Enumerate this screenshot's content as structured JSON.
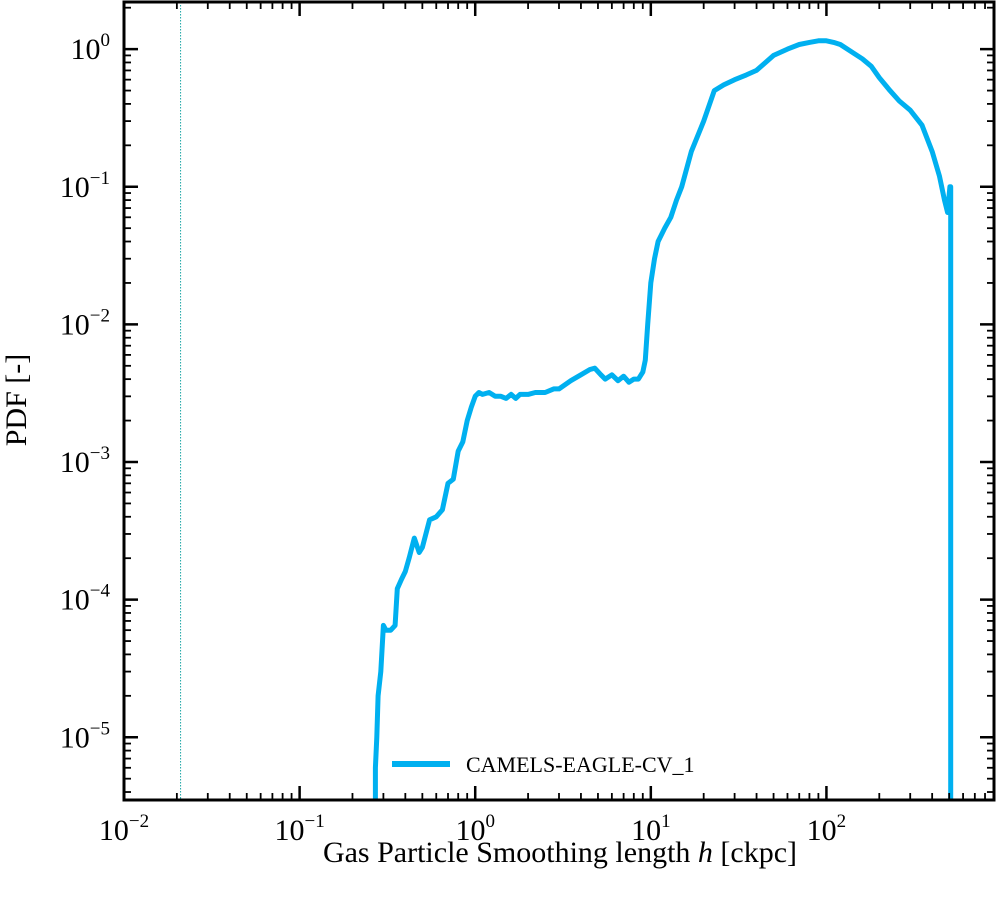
{
  "chart_data": {
    "type": "line",
    "xlabel_prefix": "Gas Particle Smoothing length ",
    "xlabel_var": "h",
    "xlabel_suffix": " [ckpc]",
    "ylabel": "PDF [-]",
    "xscale": "log",
    "yscale": "log",
    "xlim": [
      0.01,
      900
    ],
    "ylim": [
      3.5e-06,
      2.2
    ],
    "x_ticks": [
      {
        "base": "10",
        "exp": "−2"
      },
      {
        "base": "10",
        "exp": "−1"
      },
      {
        "base": "10",
        "exp": "0"
      },
      {
        "base": "10",
        "exp": "1"
      },
      {
        "base": "10",
        "exp": "2"
      }
    ],
    "y_ticks": [
      {
        "base": "10",
        "exp": "−5"
      },
      {
        "base": "10",
        "exp": "−4"
      },
      {
        "base": "10",
        "exp": "−3"
      },
      {
        "base": "10",
        "exp": "−2"
      },
      {
        "base": "10",
        "exp": "−1"
      },
      {
        "base": "10",
        "exp": "0"
      }
    ],
    "legend_position": "bottom-center",
    "vline_x": 0.021,
    "series": [
      {
        "name": "CAMELS-EAGLE-CV_1",
        "color": "#00b0f0",
        "x": [
          0.27,
          0.27,
          0.275,
          0.28,
          0.29,
          0.3,
          0.31,
          0.33,
          0.35,
          0.36,
          0.38,
          0.4,
          0.42,
          0.45,
          0.48,
          0.5,
          0.55,
          0.6,
          0.65,
          0.7,
          0.75,
          0.8,
          0.85,
          0.9,
          0.95,
          1.0,
          1.05,
          1.1,
          1.2,
          1.3,
          1.4,
          1.5,
          1.6,
          1.7,
          1.8,
          2.0,
          2.2,
          2.5,
          2.8,
          3.0,
          3.5,
          4.0,
          4.5,
          4.8,
          5.2,
          5.5,
          6.0,
          6.5,
          7.0,
          7.5,
          8.0,
          8.5,
          9.0,
          9.3,
          9.6,
          10.0,
          10.5,
          11,
          12,
          13,
          14,
          15,
          17,
          20,
          23,
          26,
          30,
          35,
          40,
          45,
          50,
          60,
          70,
          80,
          90,
          100,
          110,
          120,
          140,
          160,
          180,
          200,
          230,
          260,
          300,
          350,
          400,
          440,
          470,
          490,
          505,
          510,
          510
        ],
        "values": [
          3.5e-06,
          6e-06,
          1e-05,
          2e-05,
          3e-05,
          6.5e-05,
          6e-05,
          6e-05,
          6.5e-05,
          0.00012,
          0.00014,
          0.00016,
          0.0002,
          0.00028,
          0.00022,
          0.00024,
          0.00038,
          0.0004,
          0.00045,
          0.0007,
          0.00075,
          0.0012,
          0.0014,
          0.002,
          0.0025,
          0.003,
          0.0032,
          0.0031,
          0.0032,
          0.003,
          0.003,
          0.0029,
          0.0031,
          0.0029,
          0.0031,
          0.0031,
          0.0032,
          0.0032,
          0.0034,
          0.0034,
          0.0039,
          0.0043,
          0.0047,
          0.0048,
          0.0043,
          0.004,
          0.0043,
          0.0039,
          0.0042,
          0.0038,
          0.004,
          0.004,
          0.0045,
          0.0055,
          0.01,
          0.02,
          0.03,
          0.04,
          0.05,
          0.06,
          0.08,
          0.1,
          0.18,
          0.3,
          0.5,
          0.55,
          0.6,
          0.65,
          0.7,
          0.8,
          0.9,
          1.0,
          1.08,
          1.12,
          1.15,
          1.15,
          1.12,
          1.08,
          0.95,
          0.85,
          0.75,
          0.62,
          0.5,
          0.42,
          0.36,
          0.28,
          0.18,
          0.12,
          0.08,
          0.065,
          0.1,
          0.1,
          3.5e-06
        ]
      }
    ]
  }
}
